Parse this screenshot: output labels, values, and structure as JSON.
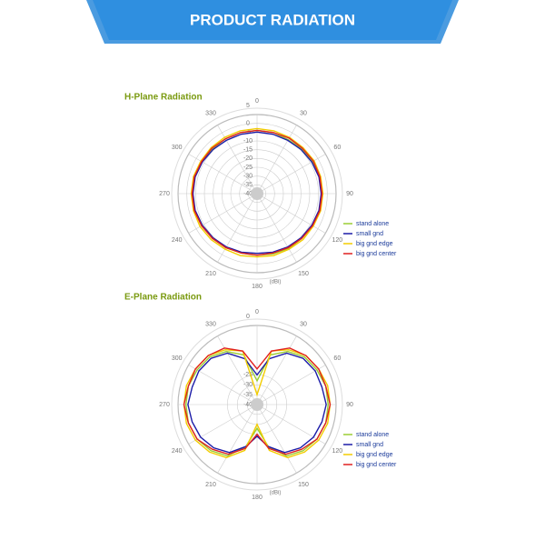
{
  "header": {
    "title": "PRODUCT RADIATION"
  },
  "chart_data": [
    {
      "type": "polar",
      "title": "H-Plane Radiation",
      "unit_label": "(dBi)",
      "theta": [
        0,
        15,
        30,
        45,
        60,
        75,
        90,
        105,
        120,
        135,
        150,
        165,
        180,
        195,
        210,
        225,
        240,
        255,
        270,
        285,
        300,
        315,
        330,
        345
      ],
      "rlim": [
        -40,
        5
      ],
      "rticks": [
        5,
        0,
        -5,
        -10,
        -15,
        -20,
        -25,
        -30,
        -35,
        -40
      ],
      "angle_ticks": [
        0,
        30,
        60,
        90,
        120,
        150,
        180,
        210,
        240,
        270,
        300,
        330
      ],
      "legend": "lower right",
      "series": [
        {
          "name": "stand alone",
          "color": "#9acd32",
          "values": [
            -4,
            -4,
            -4.5,
            -4,
            -3.5,
            -3,
            -3,
            -3,
            -3.5,
            -4,
            -4,
            -4.5,
            -5,
            -5,
            -4.5,
            -4,
            -3.5,
            -3,
            -3,
            -3,
            -3.5,
            -4,
            -4,
            -4
          ]
        },
        {
          "name": "small gnd",
          "color": "#1c1ca8",
          "values": [
            -5,
            -5,
            -5,
            -4.5,
            -4,
            -3.5,
            -3.5,
            -3.5,
            -4,
            -4.5,
            -5,
            -5.5,
            -6,
            -5.5,
            -5,
            -4.5,
            -4,
            -3.5,
            -3.5,
            -3.5,
            -4,
            -4.5,
            -5,
            -5
          ]
        },
        {
          "name": "big gnd edge",
          "color": "#f2cc00",
          "values": [
            -3,
            -3,
            -3,
            -3,
            -2.5,
            -2.5,
            -2.5,
            -2.5,
            -3,
            -3,
            -3.5,
            -3.5,
            -4,
            -3.5,
            -3.5,
            -3,
            -2.5,
            -2.5,
            -2.5,
            -2.5,
            -3,
            -3,
            -3,
            -3
          ]
        },
        {
          "name": "big gnd center",
          "color": "#e02020",
          "values": [
            -4,
            -4,
            -3.5,
            -3.5,
            -3,
            -3,
            -3,
            -3,
            -3.5,
            -4,
            -4.5,
            -5,
            -5,
            -5,
            -4.5,
            -4,
            -3.5,
            -3,
            -3,
            -3,
            -3.5,
            -3.5,
            -4,
            -4
          ]
        }
      ]
    },
    {
      "type": "polar",
      "title": "E-Plane Radiation",
      "unit_label": "(dBi)",
      "theta": [
        0,
        15,
        30,
        45,
        60,
        75,
        90,
        105,
        120,
        135,
        150,
        165,
        180,
        195,
        210,
        225,
        240,
        255,
        270,
        285,
        300,
        315,
        330,
        345
      ],
      "rlim": [
        -40,
        0
      ],
      "rticks": [
        0,
        -25,
        -30,
        -35,
        -40
      ],
      "angle_ticks": [
        0,
        30,
        60,
        90,
        120,
        150,
        180,
        210,
        240,
        270,
        300,
        330
      ],
      "legend": "lower right",
      "series": [
        {
          "name": "stand alone",
          "color": "#9acd32",
          "values": [
            -28,
            -14,
            -9,
            -6,
            -5,
            -4,
            -4,
            -4,
            -5,
            -7,
            -10,
            -18,
            -28,
            -18,
            -10,
            -7,
            -5,
            -4,
            -4,
            -4,
            -5,
            -6,
            -9,
            -14
          ]
        },
        {
          "name": "small gnd",
          "color": "#1c1ca8",
          "values": [
            -25,
            -16,
            -10,
            -7,
            -6,
            -6,
            -5,
            -6,
            -7,
            -9,
            -12,
            -18,
            -24,
            -18,
            -12,
            -9,
            -7,
            -6,
            -5,
            -6,
            -6,
            -7,
            -10,
            -16
          ]
        },
        {
          "name": "big gnd edge",
          "color": "#f2cc00",
          "values": [
            -35,
            -12,
            -8,
            -5,
            -4,
            -3,
            -3,
            -3,
            -4,
            -6,
            -9,
            -16,
            -30,
            -16,
            -9,
            -6,
            -4,
            -3,
            -3,
            -3,
            -4,
            -5,
            -8,
            -12
          ]
        },
        {
          "name": "big gnd center",
          "color": "#e02020",
          "values": [
            -22,
            -12,
            -7,
            -5,
            -4,
            -4,
            -3,
            -4,
            -5,
            -8,
            -11,
            -17,
            -25,
            -17,
            -11,
            -8,
            -5,
            -4,
            -3,
            -4,
            -4,
            -5,
            -7,
            -12
          ]
        }
      ]
    }
  ]
}
